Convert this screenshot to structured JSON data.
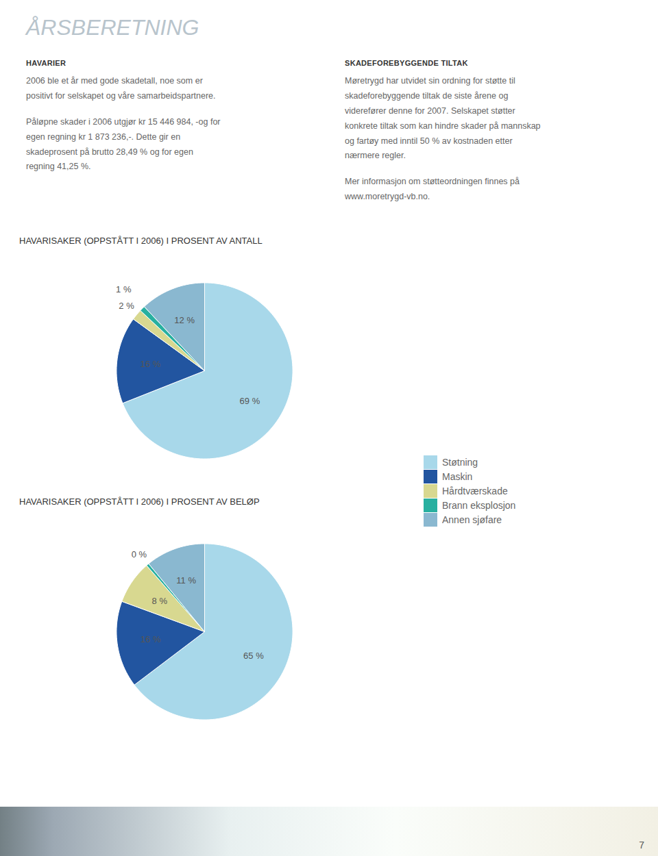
{
  "title": "ÅRSBERETNING",
  "annotations": [
    "HAVARIER",
    "2006 ble et år med gode skadetall, noe som er\npositivt for selskapet og våre samarbeidspartnere.",
    "Påløpne skader i 2006 utgjør kr 15 446 984, -og for\negen regning kr 1 873 236,-. Dette gir en\nskadeprosent på brutto 28,49 % og for egen\nregning 41,25 %.",
    "SKADEFOREBYGGENDE TILTAK",
    "Møretrygd har utvidet sin ordning for støtte til\nskadeforebyggende tiltak de siste årene og\nviderefører denne for 2007. Selskapet støtter\nkonkrete tiltak som kan hindre skader på mannskap\nog fartøy med inntil 50 % av kostnaden etter\nnærmere regler.",
    "Mer informasjon om støtteordningen finnes på\nwww.moretrygd-vb.no.",
    "7"
  ],
  "chart_data": [
    {
      "type": "pie",
      "title": "HAVARISAKER (OPPSTÅTT I 2006) I PROSENT AV ANTALL",
      "categories": [
        "Støtning",
        "Maskin",
        "Hårdtværskade",
        "Brann eksplosjon",
        "Annen sjøfare"
      ],
      "values": [
        69,
        16,
        2,
        1,
        12
      ],
      "value_labels": [
        "69 %",
        "16 %",
        "2 %",
        "1 %",
        "12 %"
      ],
      "colors": [
        "#a8d8ea",
        "#2255a0",
        "#d8d890",
        "#28b0a0",
        "#8ab8d0"
      ],
      "data_labels": true,
      "legend": "right"
    },
    {
      "type": "pie",
      "title": "HAVARISAKER (OPPSTÅTT I 2006) I PROSENT AV BELØP",
      "categories": [
        "Støtning",
        "Maskin",
        "Hårdtværskade",
        "Brann eksplosjon",
        "Annen sjøfare"
      ],
      "values": [
        65,
        16,
        8,
        0.5,
        11
      ],
      "value_labels": [
        "65 %",
        "16 %",
        "8 %",
        "0 %",
        "11 %"
      ],
      "colors": [
        "#a8d8ea",
        "#2255a0",
        "#d8d890",
        "#28b0a0",
        "#8ab8d0"
      ],
      "data_labels": true
    }
  ]
}
